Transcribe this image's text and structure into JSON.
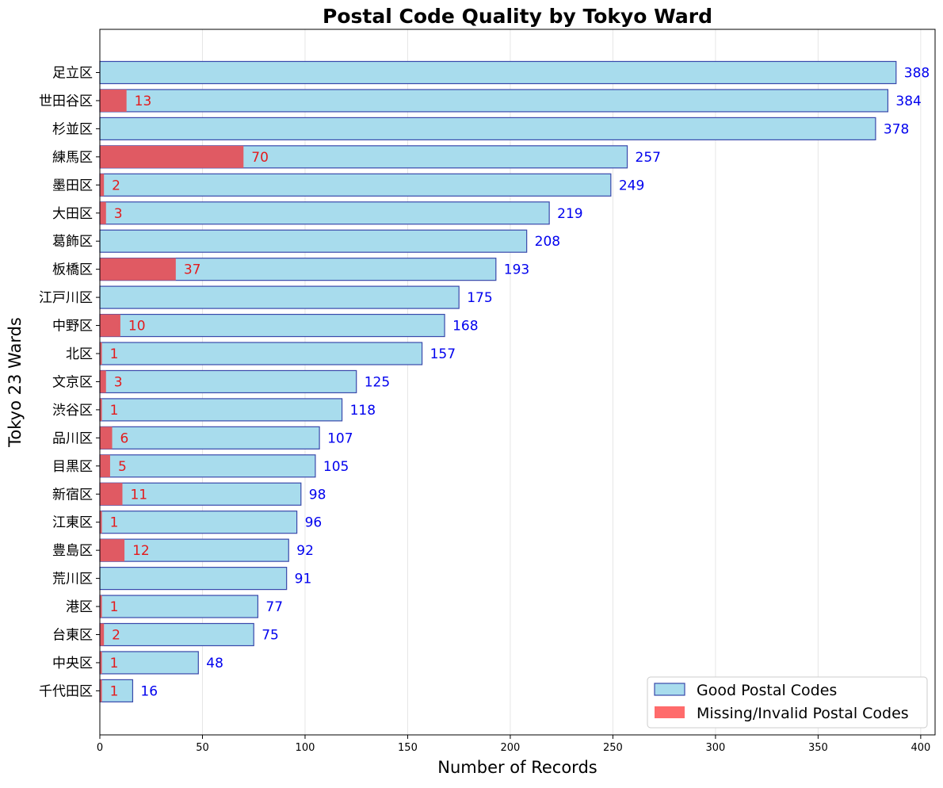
{
  "chart_data": {
    "type": "bar",
    "orientation": "horizontal",
    "stacked": "overlay",
    "title": "Postal Code Quality by Tokyo Ward",
    "xlabel": "Number of Records",
    "ylabel": "Tokyo 23 Wards",
    "xlim": [
      0,
      407
    ],
    "xticks": [
      0,
      50,
      100,
      150,
      200,
      250,
      300,
      350,
      400
    ],
    "grid": "vertical",
    "legend_position": "lower-right",
    "categories": [
      "足立区",
      "世田谷区",
      "杉並区",
      "練馬区",
      "墨田区",
      "大田区",
      "葛飾区",
      "板橋区",
      "江戸川区",
      "中野区",
      "北区",
      "文京区",
      "渋谷区",
      "品川区",
      "目黒区",
      "新宿区",
      "江東区",
      "豊島区",
      "荒川区",
      "港区",
      "台東区",
      "中央区",
      "千代田区"
    ],
    "series": [
      {
        "name": "Good Postal Codes",
        "color": "#a8dced",
        "edge_color": "#3949ab",
        "label_color": "#0000ee",
        "values": [
          388,
          384,
          378,
          257,
          249,
          219,
          208,
          193,
          175,
          168,
          157,
          125,
          118,
          107,
          105,
          98,
          96,
          92,
          91,
          77,
          75,
          48,
          16
        ]
      },
      {
        "name": "Missing/Invalid Postal Codes",
        "color": "#e05a63",
        "legend_color": "#ff6b6b",
        "label_color": "#e31a1c",
        "values": [
          0,
          13,
          0,
          70,
          2,
          3,
          0,
          37,
          0,
          10,
          1,
          3,
          1,
          6,
          5,
          11,
          1,
          12,
          0,
          1,
          2,
          1,
          1
        ]
      }
    ]
  }
}
